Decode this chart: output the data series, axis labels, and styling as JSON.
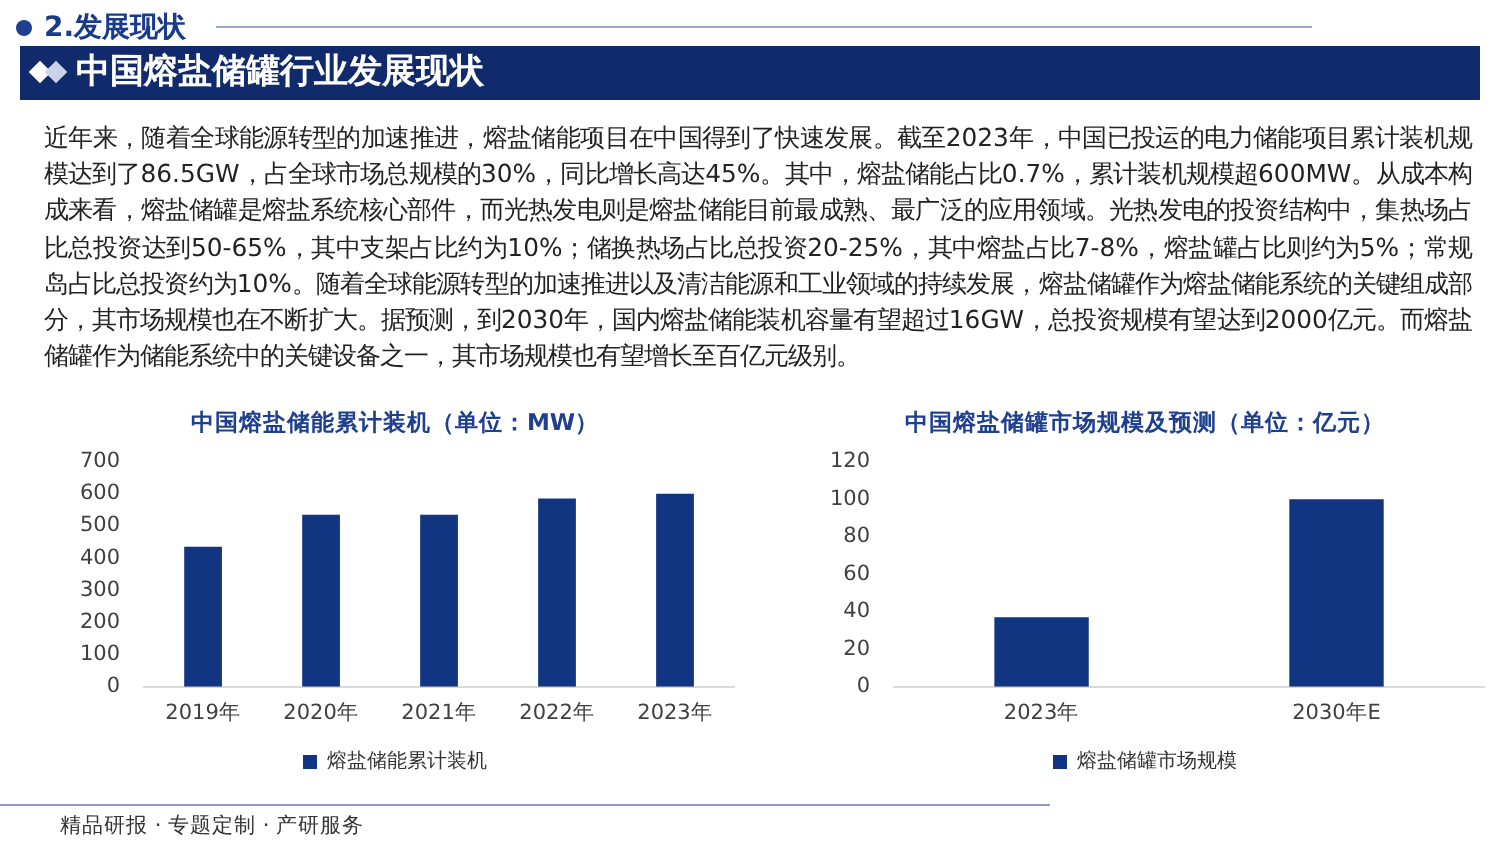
{
  "chart_data": [
    {
      "type": "other",
      "title": "中国熔盐储罐行业发展现状",
      "annotations": [
        "2.发展现状",
        "近年来，随着全球能源转型的加速推进，熔盐储能项目在中国得到了快速发展。截至2023年，中国已投运的电力储能项目累计装机规模达到了86.5GW，占全球市场总规模的30%，同比增长高达45%。其中，熔盐储能占比0.7%，累计装机规模超600MW。从成本构成来看，熔盐储罐是熔盐系统核心部件，而光热发电则是熔盐储能目前最成熟、最广泛的应用领域。光热发电的投资结构中，集热场占比总投资达到50-65%，其中支架占比约为10%；储换热场占比总投资20-25%，其中熔盐占比7-8%，熔盐罐占比则约为5%；常规岛占比总投资约为10%。随着全球能源转型的加速推进以及清洁能源和工业领域的持续发展，熔盐储罐作为熔盐储能系统的关键组成部分，其市场规模也在不断扩大。据预测，到2030年，国内熔盐储能装机容量有望超过16GW，总投资规模有望达到2000亿元。而熔盐储罐作为储能系统中的关键设备之一，其市场规模也有望增长至百亿元级别。",
        "精品研报 · 专题定制 · 产研服务"
      ]
    },
    {
      "type": "bar",
      "title": "中国熔盐储能累计装机（单位：MW）",
      "categories": [
        "2019年",
        "2020年",
        "2021年",
        "2022年",
        "2023年"
      ],
      "series": [
        {
          "name": "熔盐储能累计装机",
          "color": "#113580",
          "values": [
            435,
            535,
            535,
            585,
            600
          ]
        }
      ],
      "ylim": [
        0,
        700
      ],
      "yticks": [
        0,
        100,
        200,
        300,
        400,
        500,
        600,
        700
      ],
      "legend": "bottom"
    },
    {
      "type": "bar",
      "title": "中国熔盐储罐市场规模及预测（单位：亿元）",
      "categories": [
        "2023年",
        "2030年E"
      ],
      "series": [
        {
          "name": "熔盐储罐市场规模",
          "color": "#113580",
          "values": [
            37,
            100
          ]
        }
      ],
      "ylim": [
        0,
        120
      ],
      "yticks": [
        0,
        20,
        40,
        60,
        80,
        100,
        120
      ],
      "legend": "bottom"
    }
  ]
}
